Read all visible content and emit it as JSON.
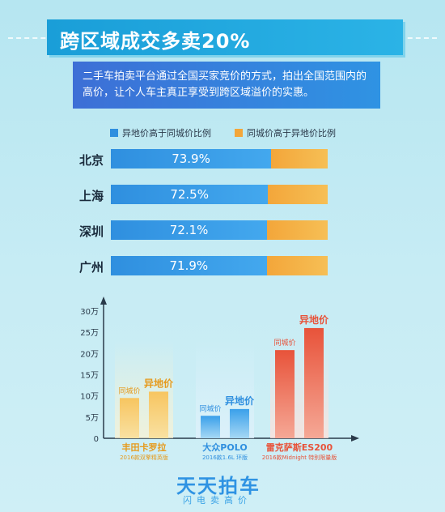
{
  "header": {
    "title": "跨区域成交多卖20%"
  },
  "description": "二手车拍卖平台通过全国买家竞价的方式，拍出全国范围内的高价，让个人车主真正享受到跨区域溢价的实惠。",
  "colors": {
    "blue": "#2f8fdf",
    "orange": "#f3a63a",
    "red": "#e8533a",
    "gold": "#f2b240"
  },
  "logo": {
    "main": "天天拍车",
    "sub": "闪电卖高价"
  },
  "chart_data": [
    {
      "type": "bar",
      "orientation": "horizontal",
      "stacked": true,
      "categories": [
        "北京",
        "上海",
        "深圳",
        "广州"
      ],
      "series": [
        {
          "name": "异地价高于同城价比例",
          "values": [
            73.9,
            72.5,
            72.1,
            71.9
          ],
          "labels": [
            "73.9%",
            "72.5%",
            "72.1%",
            "71.9%"
          ]
        },
        {
          "name": "同城价高于异地价比例",
          "values": [
            26.1,
            27.5,
            27.9,
            28.1
          ]
        }
      ],
      "xlim": [
        0,
        100
      ]
    },
    {
      "type": "bar",
      "categories": [
        "丰田卡罗拉",
        "大众POLO",
        "雷克萨斯ES200"
      ],
      "subtitles": [
        "2016款双擎精英版",
        "2016款1.6L 环版",
        "2016款Midnight 特别限量版"
      ],
      "series": [
        {
          "name": "同城价",
          "values": [
            9.5,
            5.3,
            20.8
          ]
        },
        {
          "name": "异地价",
          "values": [
            11.0,
            6.9,
            26.0
          ]
        }
      ],
      "yticks": [
        "0",
        "5万",
        "10万",
        "15万",
        "20万",
        "25万",
        "30万"
      ],
      "ylim": [
        0,
        30
      ],
      "bar_labels": [
        "同城价",
        "异地价"
      ]
    }
  ]
}
